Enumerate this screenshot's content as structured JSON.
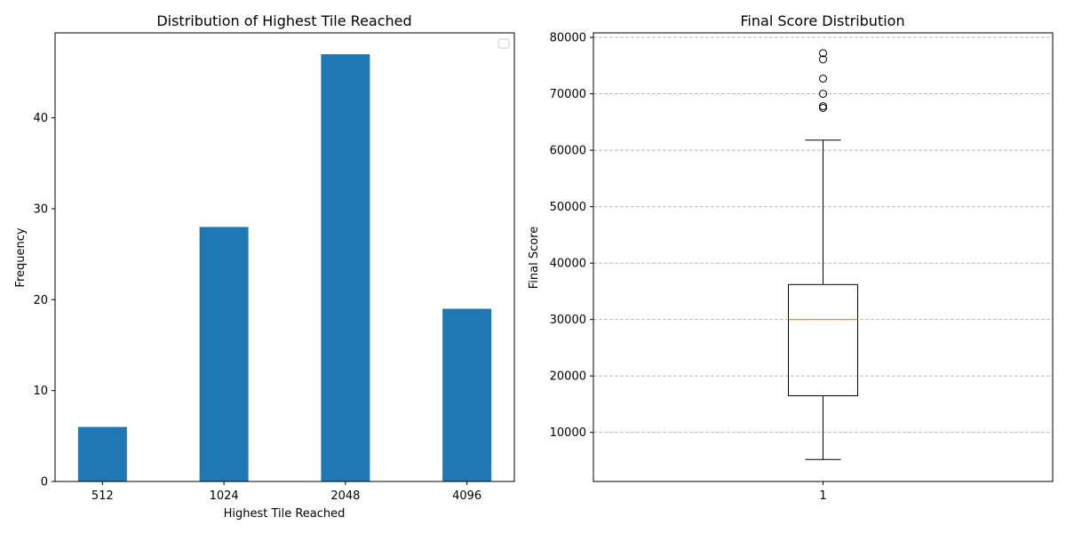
{
  "chart_data": [
    {
      "type": "bar",
      "title": "Distribution of Highest Tile Reached",
      "xlabel": "Highest Tile Reached",
      "ylabel": "Frequency",
      "categories": [
        "512",
        "1024",
        "2048",
        "4096"
      ],
      "values": [
        6,
        28,
        47,
        19
      ],
      "ylim": [
        0,
        49.35
      ],
      "yticks": [
        0,
        10,
        20,
        30,
        40
      ],
      "legend": "top-right (empty)",
      "grid": false,
      "colors": {
        "bar": "#1f77b4"
      }
    },
    {
      "type": "box",
      "title": "Final Score Distribution",
      "xlabel": "",
      "ylabel": "Final Score",
      "categories": [
        "1"
      ],
      "box": {
        "whisker_low": 5200,
        "q1": 16500,
        "median": 30000,
        "q3": 36200,
        "whisker_high": 61800,
        "outliers": [
          67500,
          67800,
          70000,
          72700,
          76100,
          77200
        ]
      },
      "ylim": [
        1300,
        80800
      ],
      "yticks": [
        10000,
        20000,
        30000,
        40000,
        50000,
        60000,
        70000,
        80000
      ],
      "grid": true,
      "colors": {
        "median": "#ff7f0e",
        "box": "#000000",
        "grid": "#b0b0b0"
      }
    }
  ]
}
